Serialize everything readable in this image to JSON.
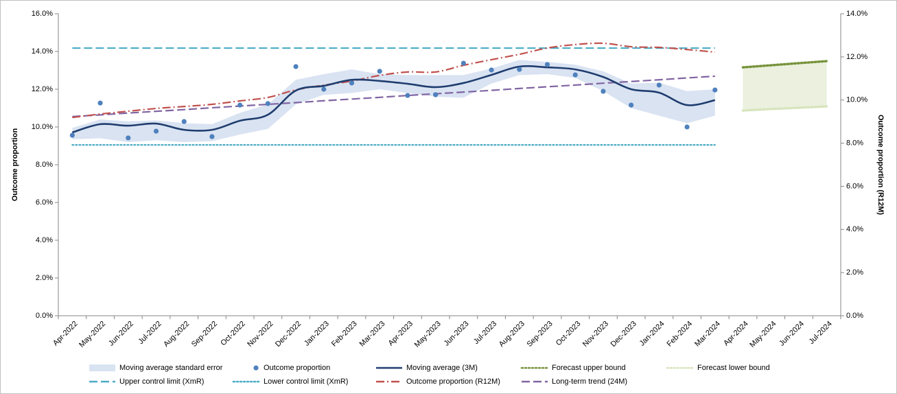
{
  "chart_data": {
    "type": "line",
    "y_label": "Outcome proportion",
    "y2_label": "Outcome proportion (R12M)",
    "categories": [
      "Apr-2022",
      "May-2022",
      "Jun-2022",
      "Jul-2022",
      "Aug-2022",
      "Sep-2022",
      "Oct-2022",
      "Nov-2022",
      "Dec-2022",
      "Jan-2023",
      "Feb-2023",
      "Mar-2023",
      "Apr-2023",
      "May-2023",
      "Jun-2023",
      "Jul-2023",
      "Aug-2023",
      "Sep-2023",
      "Oct-2023",
      "Nov-2023",
      "Dec-2023",
      "Jan-2024",
      "Feb-2024",
      "Mar-2024",
      "Apr-2024",
      "May-2024",
      "Jun-2024",
      "Jul-2024"
    ],
    "ylim": [
      0,
      16
    ],
    "yticks": [
      {
        "value": 0,
        "label": "0.0%"
      },
      {
        "value": 2,
        "label": "2.0%"
      },
      {
        "value": 4,
        "label": "4.0%"
      },
      {
        "value": 6,
        "label": "6.0%"
      },
      {
        "value": 8,
        "label": "8.0%"
      },
      {
        "value": 10,
        "label": "10.0%"
      },
      {
        "value": 12,
        "label": "12.0%"
      },
      {
        "value": 14,
        "label": "14.0%"
      },
      {
        "value": 16,
        "label": "16.0%"
      }
    ],
    "y2lim": [
      0,
      14
    ],
    "y2ticks": [
      {
        "value": 0,
        "label": "0.0%"
      },
      {
        "value": 2,
        "label": "2.0%"
      },
      {
        "value": 4,
        "label": "4.0%"
      },
      {
        "value": 6,
        "label": "6.0%"
      },
      {
        "value": 8,
        "label": "8.0%"
      },
      {
        "value": 10,
        "label": "10.0%"
      },
      {
        "value": 12,
        "label": "12.0%"
      },
      {
        "value": 14,
        "label": "14.0%"
      }
    ],
    "forecast_band_color": "#ebf1de",
    "series": [
      {
        "name": "Moving average standard error",
        "style": "band",
        "color": "#d9e3f2",
        "high": [
          9.95,
          10.4,
          10.3,
          10.35,
          10.2,
          10.15,
          10.75,
          11.2,
          12.5,
          12.8,
          13.05,
          12.8,
          12.75,
          12.75,
          12.75,
          13.1,
          13.55,
          13.45,
          13.3,
          12.95,
          12.3,
          12.35,
          11.9,
          12.0,
          null,
          null,
          null,
          null
        ],
        "low": [
          9.35,
          9.4,
          9.2,
          9.3,
          9.2,
          9.25,
          9.6,
          9.9,
          11.2,
          11.7,
          11.8,
          12.0,
          11.8,
          11.6,
          11.55,
          12.3,
          12.75,
          12.8,
          12.6,
          11.9,
          11.0,
          10.6,
          10.2,
          10.6,
          null,
          null,
          null,
          null
        ]
      },
      {
        "name": "Outcome proportion",
        "style": "dots",
        "color": "#4f81bd",
        "values": [
          9.56,
          11.27,
          9.42,
          9.78,
          10.29,
          9.49,
          11.16,
          11.24,
          13.2,
          12.0,
          12.33,
          12.95,
          11.67,
          11.71,
          13.38,
          13.02,
          13.05,
          13.31,
          12.76,
          11.89,
          11.16,
          12.22,
          10.0,
          11.96,
          null,
          null,
          null,
          null
        ]
      },
      {
        "name": "Moving average (3M)",
        "style": "smooth",
        "color": "#1f3d6e",
        "values": [
          9.71,
          10.15,
          10.07,
          10.18,
          9.85,
          9.85,
          10.33,
          10.65,
          11.93,
          12.18,
          12.5,
          12.44,
          12.29,
          12.11,
          12.33,
          12.76,
          13.2,
          13.16,
          13.05,
          12.65,
          12.0,
          11.82,
          11.16,
          11.42,
          null,
          null,
          null,
          null
        ]
      },
      {
        "name": "Forecast upper bound",
        "style": "dot",
        "color": "#77933c",
        "values": [
          null,
          null,
          null,
          null,
          null,
          null,
          null,
          null,
          null,
          null,
          null,
          null,
          null,
          null,
          null,
          null,
          null,
          null,
          null,
          null,
          null,
          null,
          null,
          null,
          13.16,
          13.27,
          13.38,
          13.49
        ]
      },
      {
        "name": "Forecast lower bound",
        "style": "dot",
        "color": "#d7e4bd",
        "values": [
          null,
          null,
          null,
          null,
          null,
          null,
          null,
          null,
          null,
          null,
          null,
          null,
          null,
          null,
          null,
          null,
          null,
          null,
          null,
          null,
          null,
          null,
          null,
          null,
          10.87,
          10.95,
          11.02,
          11.09
        ]
      },
      {
        "name": "Upper control limit (XmR)",
        "style": "dash",
        "color": "#4bacc6",
        "values": [
          14.18,
          14.18,
          14.18,
          14.18,
          14.18,
          14.18,
          14.18,
          14.18,
          14.18,
          14.18,
          14.18,
          14.18,
          14.18,
          14.18,
          14.18,
          14.18,
          14.18,
          14.18,
          14.18,
          14.18,
          14.18,
          14.18,
          14.18,
          14.18,
          null,
          null,
          null,
          null
        ]
      },
      {
        "name": "Lower control limit (XmR)",
        "style": "dot",
        "color": "#4bacc6",
        "values": [
          9.05,
          9.05,
          9.05,
          9.05,
          9.05,
          9.05,
          9.05,
          9.05,
          9.05,
          9.05,
          9.05,
          9.05,
          9.05,
          9.05,
          9.05,
          9.05,
          9.05,
          9.05,
          9.05,
          9.05,
          9.05,
          9.05,
          9.05,
          9.05,
          null,
          null,
          null,
          null
        ]
      },
      {
        "name": "Outcome proportion (R12M)",
        "style": "dashdot",
        "color": "#c0504d",
        "axis": "y2",
        "values": [
          9.19,
          9.35,
          9.48,
          9.61,
          9.7,
          9.8,
          9.96,
          10.12,
          10.47,
          10.69,
          10.88,
          11.14,
          11.3,
          11.3,
          11.61,
          11.87,
          12.12,
          12.41,
          12.57,
          12.63,
          12.47,
          12.44,
          12.34,
          12.22,
          null,
          null,
          null,
          null
        ]
      },
      {
        "name": "Long-term trend (24M)",
        "style": "dash",
        "color": "#8064a2",
        "values": [
          10.55,
          10.64,
          10.74,
          10.83,
          10.92,
          11.02,
          11.11,
          11.2,
          11.29,
          11.39,
          11.48,
          11.57,
          11.67,
          11.76,
          11.85,
          11.94,
          12.04,
          12.13,
          12.22,
          12.32,
          12.41,
          12.5,
          12.6,
          12.69,
          null,
          null,
          null,
          null
        ]
      }
    ]
  }
}
